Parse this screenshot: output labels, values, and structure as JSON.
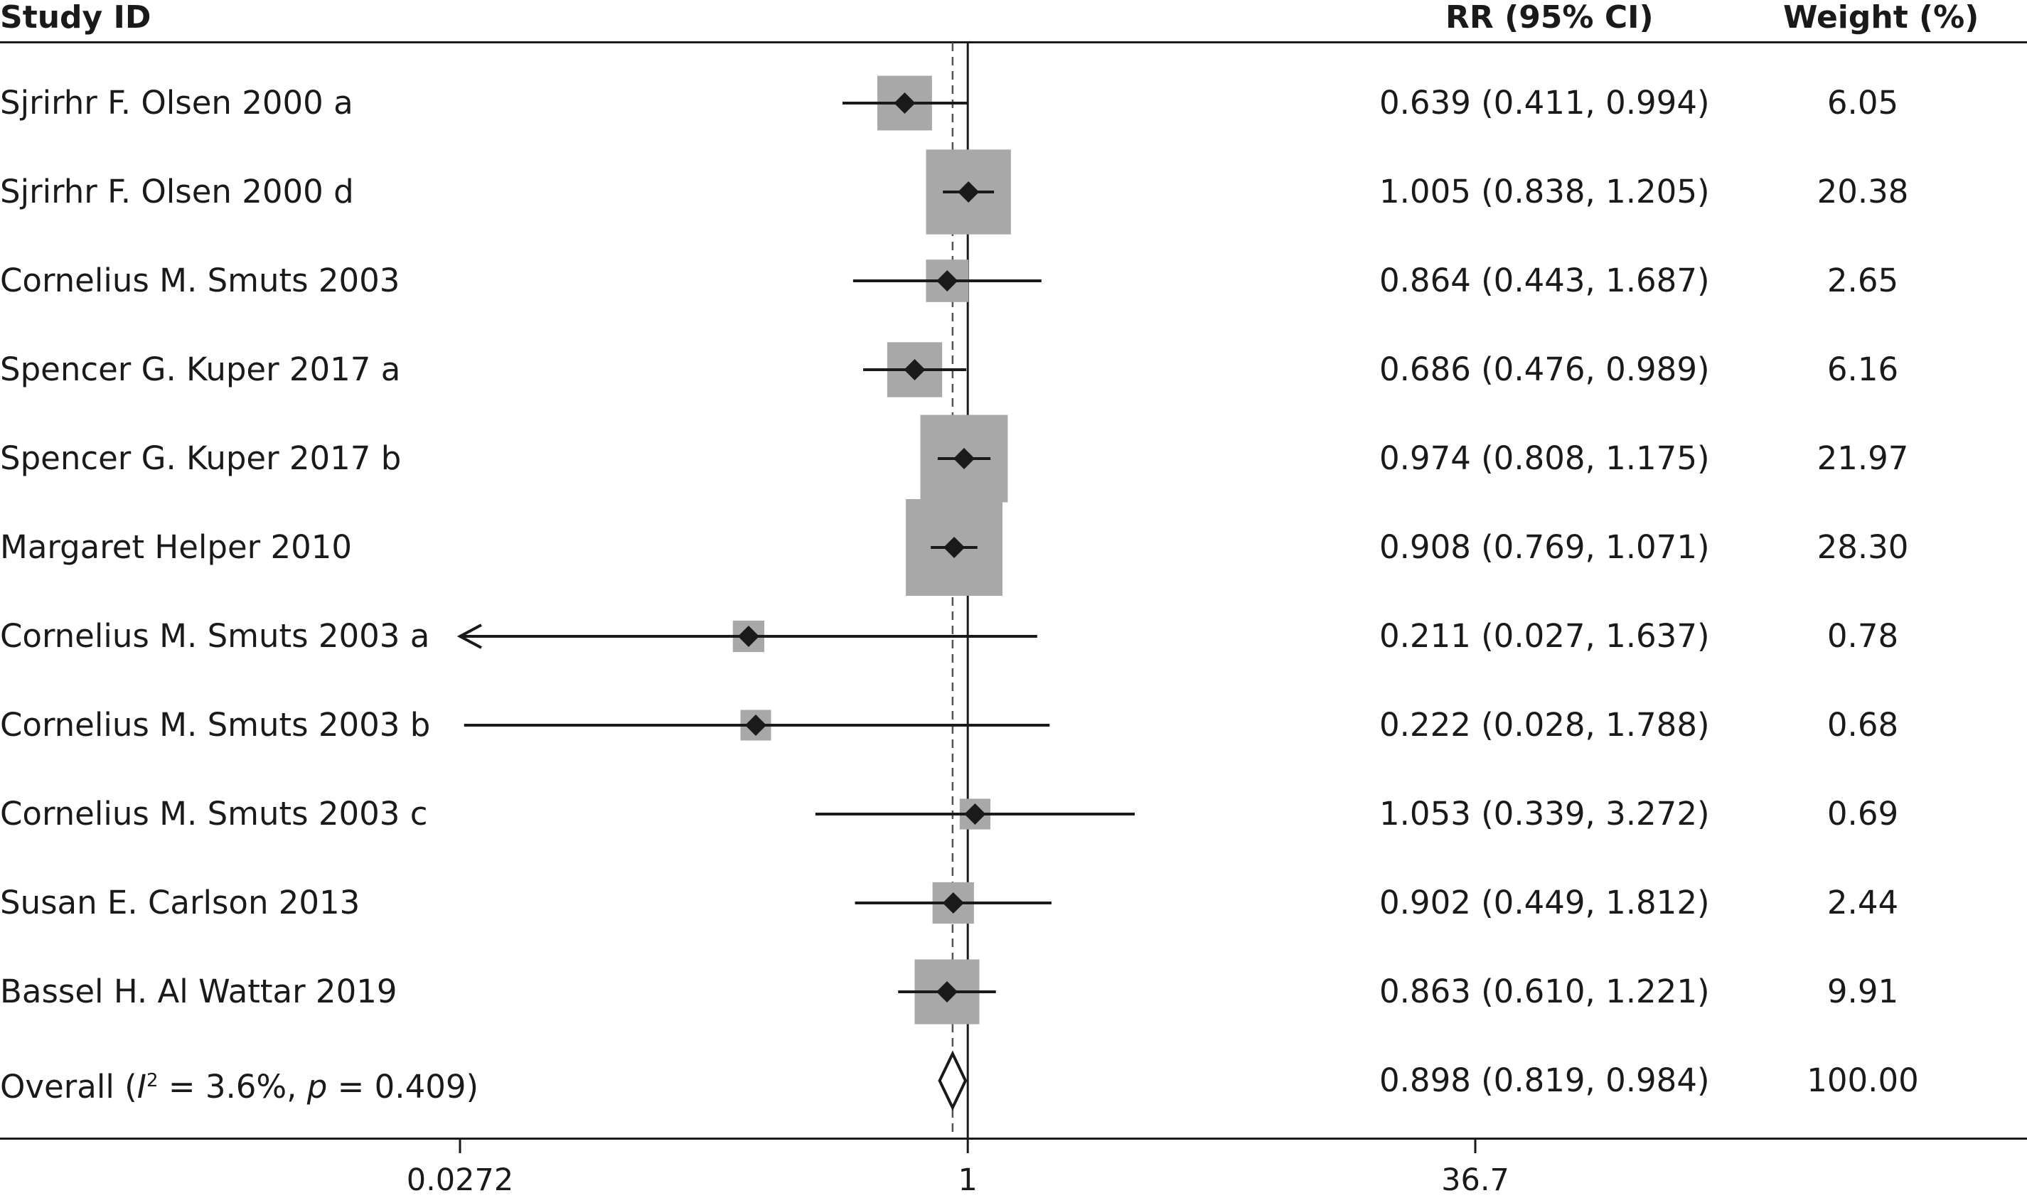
{
  "header": {
    "study_label": "Study ID",
    "rr_label": "RR (95% CI)",
    "weight_label": "Weight (%)"
  },
  "chart_data": {
    "type": "forest",
    "x_scale": "log",
    "xlim": [
      0.0272,
      36.7
    ],
    "xticks": [
      "0.0272",
      "1",
      "36.7"
    ],
    "null_line": 1,
    "overall_line": 0.898,
    "rows": [
      {
        "study": "Sjrirhr F. Olsen 2000 a",
        "rr": 0.639,
        "lo": 0.411,
        "hi": 0.994,
        "weight": 6.05,
        "rr_text": "0.639 (0.411, 0.994)",
        "weight_text": "6.05",
        "kind": "study"
      },
      {
        "study": "Sjrirhr F. Olsen 2000 d",
        "rr": 1.005,
        "lo": 0.838,
        "hi": 1.205,
        "weight": 20.38,
        "rr_text": "1.005 (0.838, 1.205)",
        "weight_text": "20.38",
        "kind": "study"
      },
      {
        "study": "Cornelius M. Smuts 2003",
        "rr": 0.864,
        "lo": 0.443,
        "hi": 1.687,
        "weight": 2.65,
        "rr_text": "0.864 (0.443, 1.687)",
        "weight_text": "2.65",
        "kind": "study"
      },
      {
        "study": "Spencer G. Kuper 2017 a",
        "rr": 0.686,
        "lo": 0.476,
        "hi": 0.989,
        "weight": 6.16,
        "rr_text": "0.686 (0.476, 0.989)",
        "weight_text": "6.16",
        "kind": "study"
      },
      {
        "study": "Spencer G. Kuper 2017 b",
        "rr": 0.974,
        "lo": 0.808,
        "hi": 1.175,
        "weight": 21.97,
        "rr_text": "0.974 (0.808, 1.175)",
        "weight_text": "21.97",
        "kind": "study"
      },
      {
        "study": "Margaret Helper 2010",
        "rr": 0.908,
        "lo": 0.769,
        "hi": 1.071,
        "weight": 28.3,
        "rr_text": "0.908 (0.769, 1.071)",
        "weight_text": "28.30",
        "kind": "study"
      },
      {
        "study": "Cornelius M. Smuts 2003 a",
        "rr": 0.211,
        "lo": 0.027,
        "hi": 1.637,
        "weight": 0.78,
        "rr_text": "0.211 (0.027, 1.637)",
        "weight_text": "0.78",
        "kind": "study"
      },
      {
        "study": "Cornelius M. Smuts 2003 b",
        "rr": 0.222,
        "lo": 0.028,
        "hi": 1.788,
        "weight": 0.68,
        "rr_text": "0.222 (0.028, 1.788)",
        "weight_text": "0.68",
        "kind": "study"
      },
      {
        "study": "Cornelius M. Smuts 2003 c",
        "rr": 1.053,
        "lo": 0.339,
        "hi": 3.272,
        "weight": 0.69,
        "rr_text": "1.053 (0.339, 3.272)",
        "weight_text": "0.69",
        "kind": "study"
      },
      {
        "study": "Susan E. Carlson 2013",
        "rr": 0.902,
        "lo": 0.449,
        "hi": 1.812,
        "weight": 2.44,
        "rr_text": "0.902 (0.449, 1.812)",
        "weight_text": "2.44",
        "kind": "study"
      },
      {
        "study": "Bassel H. Al Wattar 2019",
        "rr": 0.863,
        "lo": 0.61,
        "hi": 1.221,
        "weight": 9.91,
        "rr_text": "0.863 (0.610, 1.221)",
        "weight_text": "9.91",
        "kind": "study"
      },
      {
        "study_prefix": "Overall (",
        "study_i": "I",
        "study_sup": "2",
        "study_mid": " = 3.6%, ",
        "study_p": "p",
        "study_end": " = 0.409)",
        "rr": 0.898,
        "lo": 0.819,
        "hi": 0.984,
        "weight": 100.0,
        "rr_text": "0.898 (0.819, 0.984)",
        "weight_text": "100.00",
        "kind": "overall"
      }
    ],
    "colors": {
      "box": "#a8a8a8",
      "line": "#1a1a1a",
      "dashed": "#555555"
    }
  }
}
